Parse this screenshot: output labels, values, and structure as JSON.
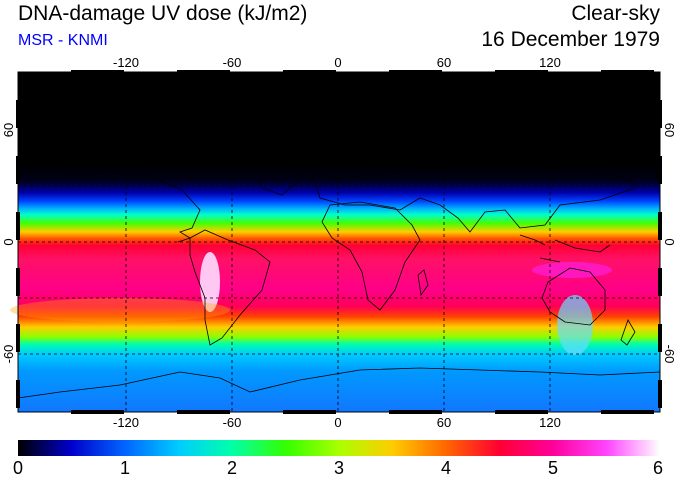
{
  "header": {
    "title": "DNA-damage UV dose (kJ/m2)",
    "subtitle": "MSR - KNMI",
    "sky_condition": "Clear-sky",
    "date": "16 December 1979"
  },
  "map": {
    "longitude_ticks": [
      "-120",
      "-60",
      "0",
      "60",
      "120"
    ],
    "latitude_ticks": [
      "60",
      "0",
      "-60"
    ],
    "gridlines": "dashed every 30 degrees"
  },
  "colorbar": {
    "labels": [
      "0",
      "1",
      "2",
      "3",
      "4",
      "5",
      "6"
    ],
    "range": [
      0,
      6
    ],
    "unit": "kJ/m2",
    "colors": {
      "c0": "#000000",
      "c05": "#0000cc",
      "c1": "#0066ff",
      "c15": "#00ccff",
      "c2": "#00ffaa",
      "c25": "#33ff00",
      "c3": "#aaff00",
      "c35": "#ffcc00",
      "c4": "#ff6600",
      "c45": "#ff0033",
      "c5": "#ff0099",
      "c55": "#ff44ff",
      "c6": "#ffffff"
    }
  }
}
